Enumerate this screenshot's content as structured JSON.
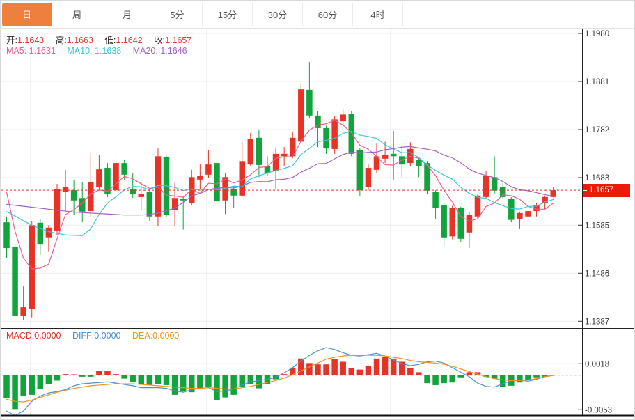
{
  "toolbar": {
    "tabs": [
      {
        "label": "日",
        "active": true
      },
      {
        "label": "周",
        "active": false
      },
      {
        "label": "月",
        "active": false
      },
      {
        "label": "5分",
        "active": false
      },
      {
        "label": "15分",
        "active": false
      },
      {
        "label": "30分",
        "active": false
      },
      {
        "label": "60分",
        "active": false
      },
      {
        "label": "4时",
        "active": false
      }
    ]
  },
  "readout": {
    "open_label": "开:",
    "open": "1.1643",
    "high_label": "高:",
    "high": "1.1663",
    "low_label": "低:",
    "low": "1.1642",
    "close_label": "收:",
    "close": "1.1657",
    "ma5_label": "MA5:",
    "ma5": "1.1631",
    "ma10_label": "MA10:",
    "ma10": "1.1638",
    "ma20_label": "MA20:",
    "ma20": "1.1646",
    "macd_label": "MACD:",
    "macd": "0.0000",
    "diff_label": "DIFF:",
    "diff": "0.0000",
    "dea_label": "DEA:",
    "dea": "0.0000"
  },
  "current_price": "1.1657",
  "colors": {
    "up": "#e93226",
    "down": "#12a43c",
    "ma5": "#e8608d",
    "ma10": "#3fc3dc",
    "ma20": "#9e63c3",
    "diff_line": "#4a90d8",
    "dea_line": "#f0921e",
    "accent_tab": "#ef7f3d",
    "price_flag_bg": "#ea1b09",
    "value_red": "#e0352b",
    "axis_text": "#333333",
    "grid": "#ebeeed",
    "vgrid": "#e3e7e6",
    "zero_dash": "#c9cdcc",
    "zero_dash_future": "#a9cfdf",
    "border_dark": "#222222"
  },
  "chart_data": [
    {
      "type": "candlestick",
      "title": "",
      "ylabel": "price",
      "y_ticks": [
        1.198,
        1.1881,
        1.1782,
        1.1683,
        1.1585,
        1.1486,
        1.1387
      ],
      "ylim": [
        1.134,
        1.199
      ],
      "current_price": 1.1657,
      "ma_periods": [
        5,
        10,
        20
      ],
      "ma_lead": {
        "ma5": [
          1.1653,
          1.1573,
          1.1517,
          1.1495
        ],
        "ma10": [
          1.1613,
          1.1604,
          1.1594,
          1.1585,
          1.1578,
          1.1572,
          1.1568,
          1.1565,
          1.1564
        ],
        "ma20": [
          1.1628,
          1.1626,
          1.1624,
          1.1622,
          1.162,
          1.1618,
          1.1616,
          1.1614,
          1.1612,
          1.1611,
          1.161,
          1.1609,
          1.1608,
          1.1607,
          1.1606,
          1.1606,
          1.1606,
          1.1607,
          1.161
        ]
      },
      "candles": [
        [
          1.1591,
          1.1603,
          1.1517,
          1.1538
        ],
        [
          1.1541,
          1.1546,
          1.1395,
          1.1399
        ],
        [
          1.1399,
          1.1459,
          1.139,
          1.1416
        ],
        [
          1.1412,
          1.1593,
          1.1395,
          1.1585
        ],
        [
          1.159,
          1.1598,
          1.1524,
          1.1545
        ],
        [
          1.156,
          1.1585,
          1.153,
          1.158
        ],
        [
          1.1574,
          1.167,
          1.1564,
          1.166
        ],
        [
          1.1653,
          1.1699,
          1.1613,
          1.1664
        ],
        [
          1.1657,
          1.1679,
          1.1606,
          1.1636
        ],
        [
          1.1641,
          1.1674,
          1.1591,
          1.1613
        ],
        [
          1.1614,
          1.1735,
          1.1603,
          1.1674
        ],
        [
          1.1664,
          1.1729,
          1.1657,
          1.17
        ],
        [
          1.1703,
          1.1713,
          1.1643,
          1.165
        ],
        [
          1.1657,
          1.1727,
          1.1653,
          1.1713
        ],
        [
          1.1713,
          1.172,
          1.1679,
          1.1689
        ],
        [
          1.166,
          1.1692,
          1.1641,
          1.165
        ],
        [
          1.1643,
          1.1674,
          1.1617,
          1.1649
        ],
        [
          1.1653,
          1.1657,
          1.1593,
          1.1603
        ],
        [
          1.1603,
          1.1743,
          1.1584,
          1.1727
        ],
        [
          1.1725,
          1.1728,
          1.1603,
          1.1606
        ],
        [
          1.1617,
          1.1672,
          1.1584,
          1.1641
        ],
        [
          1.164,
          1.1645,
          1.1576,
          1.1636
        ],
        [
          1.1631,
          1.1699,
          1.1627,
          1.1684
        ],
        [
          1.1679,
          1.171,
          1.166,
          1.1686
        ],
        [
          1.1689,
          1.1739,
          1.1682,
          1.171
        ],
        [
          1.1713,
          1.1717,
          1.1608,
          1.1634
        ],
        [
          1.1636,
          1.1692,
          1.1608,
          1.1684
        ],
        [
          1.166,
          1.1664,
          1.1621,
          1.1646
        ],
        [
          1.1646,
          1.1757,
          1.1643,
          1.1717
        ],
        [
          1.171,
          1.1775,
          1.1706,
          1.1763
        ],
        [
          1.1765,
          1.1782,
          1.1684,
          1.1709
        ],
        [
          1.1707,
          1.1727,
          1.1686,
          1.1693
        ],
        [
          1.1696,
          1.1743,
          1.166,
          1.1732
        ],
        [
          1.1727,
          1.1746,
          1.1707,
          1.1732
        ],
        [
          1.1727,
          1.1778,
          1.1723,
          1.1765
        ],
        [
          1.1757,
          1.1878,
          1.1755,
          1.1865
        ],
        [
          1.1864,
          1.1921,
          1.1806,
          1.1811
        ],
        [
          1.1811,
          1.182,
          1.1746,
          1.1785
        ],
        [
          1.1785,
          1.179,
          1.1732,
          1.1743
        ],
        [
          1.1742,
          1.181,
          1.1732,
          1.1803
        ],
        [
          1.1799,
          1.1825,
          1.1792,
          1.1813
        ],
        [
          1.1815,
          1.182,
          1.1727,
          1.1732
        ],
        [
          1.1739,
          1.1743,
          1.1646,
          1.1657
        ],
        [
          1.1663,
          1.171,
          1.1657,
          1.1703
        ],
        [
          1.1699,
          1.1753,
          1.1693,
          1.1727
        ],
        [
          1.1722,
          1.1757,
          1.1713,
          1.1729
        ],
        [
          1.1732,
          1.1779,
          1.1679,
          1.1727
        ],
        [
          1.1727,
          1.175,
          1.1684,
          1.171
        ],
        [
          1.1713,
          1.1756,
          1.1706,
          1.1742
        ],
        [
          1.172,
          1.1725,
          1.1684,
          1.1706
        ],
        [
          1.1713,
          1.1717,
          1.165,
          1.1656
        ],
        [
          1.1653,
          1.1657,
          1.1598,
          1.1621
        ],
        [
          1.1627,
          1.163,
          1.1542,
          1.156
        ],
        [
          1.1562,
          1.1625,
          1.1556,
          1.1621
        ],
        [
          1.162,
          1.1623,
          1.155,
          1.1557
        ],
        [
          1.157,
          1.1613,
          1.1538,
          1.1607
        ],
        [
          1.1603,
          1.165,
          1.1598,
          1.1646
        ],
        [
          1.1643,
          1.1696,
          1.1639,
          1.1687
        ],
        [
          1.1684,
          1.1727,
          1.165,
          1.1656
        ],
        [
          1.1663,
          1.1672,
          1.1639,
          1.1643
        ],
        [
          1.1639,
          1.1643,
          1.1591,
          1.1596
        ],
        [
          1.1598,
          1.1613,
          1.1577,
          1.161
        ],
        [
          1.1603,
          1.1617,
          1.1582,
          1.1614
        ],
        [
          1.1614,
          1.163,
          1.1603,
          1.1627
        ],
        [
          1.1631,
          1.1646,
          1.1617,
          1.1643
        ],
        [
          1.1643,
          1.1663,
          1.1642,
          1.1657
        ]
      ]
    },
    {
      "type": "bar",
      "title": "MACD",
      "y_ticks": [
        0.0018,
        -0.0053
      ],
      "histogram": [
        -0.0035,
        -0.0052,
        -0.0032,
        -0.003,
        -0.0021,
        -0.0013,
        -0.0008,
        0.0002,
        0.0001,
        -0.0002,
        -0.0002,
        0.0007,
        0.0007,
        0.0002,
        -0.0005,
        -0.001,
        -0.0013,
        -0.0015,
        -0.0013,
        -0.0015,
        -0.003,
        -0.0025,
        -0.0026,
        -0.002,
        -0.0018,
        -0.0038,
        -0.0034,
        -0.003,
        -0.0018,
        -0.0014,
        -0.002,
        -0.0014,
        -0.0006,
        0.0002,
        0.0012,
        0.0026,
        0.0019,
        0.0017,
        0.0017,
        0.0025,
        0.0021,
        0.0011,
        0.0009,
        0.0014,
        0.0026,
        0.0029,
        0.0026,
        0.0021,
        0.0011,
        0.0005,
        -0.0012,
        -0.0015,
        -0.0012,
        -0.0011,
        -0.0003,
        0.0005,
        0.0005,
        -0.0002,
        -0.0005,
        -0.0018,
        -0.0016,
        -0.0011,
        -0.0007,
        -0.0003,
        -0.0002,
        0.0
      ],
      "diff": [
        -0.0055,
        -0.0062,
        -0.0055,
        -0.004,
        -0.0032,
        -0.0027,
        -0.0025,
        -0.0022,
        -0.0016,
        -0.0013,
        -0.0012,
        -0.0011,
        -0.001,
        -0.0012,
        -0.0014,
        -0.0016,
        -0.0019,
        -0.0019,
        -0.0019,
        -0.002,
        -0.0024,
        -0.0026,
        -0.0022,
        -0.002,
        -0.0019,
        -0.0025,
        -0.0024,
        -0.0021,
        -0.0015,
        -0.001,
        -0.0008,
        -0.0006,
        -0.0003,
        0.0004,
        0.0012,
        0.0022,
        0.0031,
        0.0038,
        0.0043,
        0.004,
        0.0035,
        0.0031,
        0.003,
        0.0032,
        0.0034,
        0.003,
        0.0024,
        0.0018,
        0.0015,
        0.0017,
        0.0021,
        0.0022,
        0.0019,
        0.0012,
        0.0005,
        -0.0002,
        -0.0012,
        -0.0017,
        -0.0018,
        -0.0013,
        -0.0008,
        -0.0007,
        -0.0009,
        -0.0006,
        -0.0002,
        0.0
      ],
      "dea": [
        -0.0037,
        -0.004,
        -0.0041,
        -0.0038,
        -0.0034,
        -0.003,
        -0.0026,
        -0.0023,
        -0.002,
        -0.0018,
        -0.0016,
        -0.0015,
        -0.0014,
        -0.0013,
        -0.0013,
        -0.0013,
        -0.0014,
        -0.0015,
        -0.0016,
        -0.0017,
        -0.0018,
        -0.0019,
        -0.002,
        -0.002,
        -0.0019,
        -0.002,
        -0.0021,
        -0.0021,
        -0.0019,
        -0.0017,
        -0.0014,
        -0.0011,
        -0.0008,
        -0.0004,
        0.0001,
        0.0007,
        0.0013,
        0.0019,
        0.0025,
        0.0028,
        0.003,
        0.0031,
        0.0031,
        0.0031,
        0.0031,
        0.003,
        0.0028,
        0.0026,
        0.0023,
        0.0021,
        0.002,
        0.0019,
        0.0017,
        0.0014,
        0.001,
        0.0006,
        0.0002,
        -0.0002,
        -0.0005,
        -0.0007,
        -0.0008,
        -0.0008,
        -0.0007,
        -0.0005,
        -0.0002,
        0.0
      ]
    }
  ]
}
